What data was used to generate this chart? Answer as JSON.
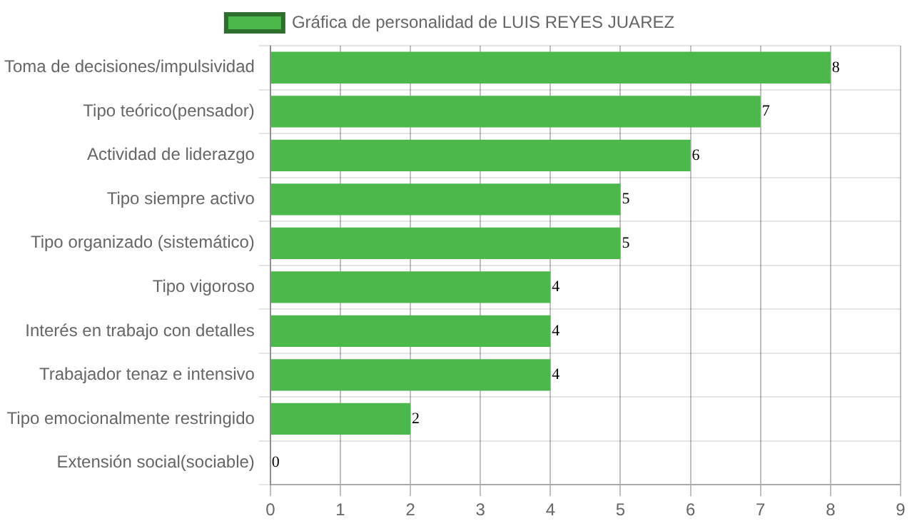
{
  "chart_data": {
    "type": "bar",
    "orientation": "horizontal",
    "categories": [
      "Toma de decisiones/impulsividad",
      "Tipo teórico(pensador)",
      "Actividad de liderazgo",
      "Tipo siempre activo",
      "Tipo organizado (sistemático)",
      "Tipo vigoroso",
      "Interés en trabajo con detalles",
      "Trabajador tenaz e intensivo",
      "Tipo emocionalmente restringido",
      "Extensión social(sociable)"
    ],
    "series": [
      {
        "name": "Gráfica de personalidad de LUIS REYES JUAREZ",
        "color": "#4cb84c",
        "values": [
          8,
          7,
          6,
          5,
          5,
          4,
          4,
          4,
          2,
          0
        ]
      }
    ],
    "xlim": [
      0,
      9
    ],
    "xticks": [
      0,
      1,
      2,
      3,
      4,
      5,
      6,
      7,
      8,
      9
    ],
    "grid": true,
    "legend": "top",
    "data_labels": true
  }
}
